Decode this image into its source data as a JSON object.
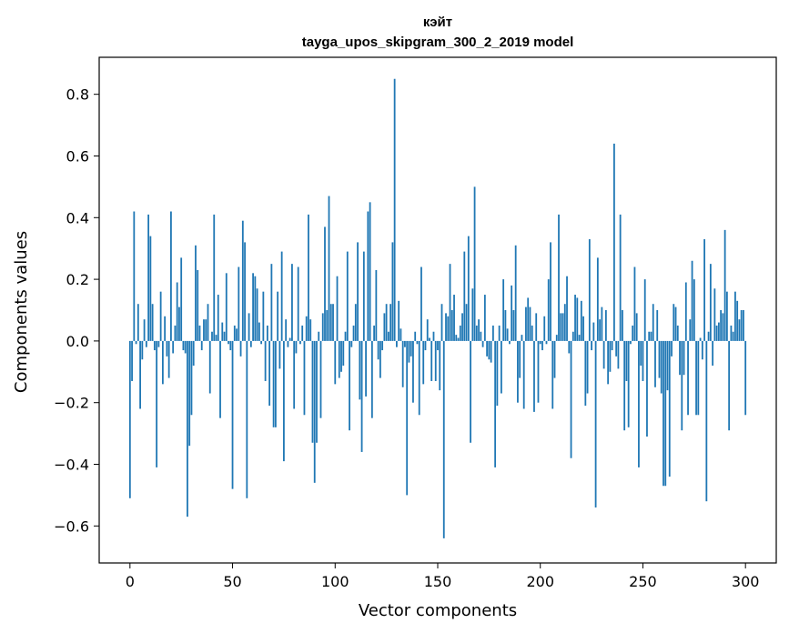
{
  "chart_data": {
    "type": "bar",
    "title": "кэйт",
    "subtitle": "tayga_upos_skipgram_300_2_2019 model",
    "xlabel": "Vector components",
    "ylabel": "Components values",
    "xlim": [
      -15,
      315
    ],
    "ylim": [
      -0.72,
      0.92
    ],
    "xticks": [
      0,
      50,
      100,
      150,
      200,
      250,
      300
    ],
    "yticks": [
      -0.6,
      -0.4,
      -0.2,
      0.0,
      0.2,
      0.4,
      0.6,
      0.8
    ],
    "ytick_labels": [
      "−0.6",
      "−0.4",
      "−0.2",
      "0.0",
      "0.2",
      "0.4",
      "0.6",
      "0.8"
    ],
    "color": "#1f77b4",
    "values": [
      -0.51,
      -0.13,
      0.42,
      -0.01,
      0.12,
      -0.22,
      -0.06,
      0.07,
      -0.02,
      0.41,
      0.34,
      0.12,
      -0.03,
      -0.41,
      -0.02,
      0.16,
      -0.14,
      0.08,
      -0.05,
      -0.12,
      0.42,
      -0.04,
      0.05,
      0.19,
      0.11,
      0.27,
      -0.03,
      -0.04,
      -0.57,
      -0.34,
      -0.24,
      -0.08,
      0.31,
      0.23,
      0.05,
      -0.03,
      0.07,
      0.07,
      0.12,
      -0.17,
      0.03,
      0.41,
      0.02,
      0.15,
      -0.25,
      0.06,
      0.03,
      0.22,
      -0.01,
      -0.03,
      -0.48,
      0.05,
      0.04,
      0.24,
      -0.05,
      0.39,
      0.32,
      -0.51,
      0.09,
      -0.02,
      0.22,
      0.21,
      0.17,
      0.06,
      -0.01,
      0.16,
      -0.13,
      0.05,
      -0.21,
      0.25,
      -0.28,
      -0.28,
      0.16,
      -0.09,
      0.29,
      -0.39,
      0.07,
      -0.02,
      0.01,
      0.25,
      -0.22,
      -0.04,
      0.24,
      -0.01,
      0.05,
      -0.24,
      0.08,
      0.41,
      0.07,
      -0.33,
      -0.46,
      -0.33,
      0.03,
      -0.25,
      0.09,
      0.37,
      0.1,
      0.47,
      0.12,
      0.12,
      -0.14,
      0.21,
      -0.12,
      -0.1,
      -0.08,
      0.03,
      0.29,
      -0.29,
      -0.02,
      0.05,
      0.12,
      0.32,
      -0.19,
      -0.36,
      0.29,
      -0.18,
      0.42,
      0.45,
      -0.25,
      0.05,
      0.23,
      -0.06,
      -0.12,
      -0.03,
      0.09,
      0.12,
      0.03,
      0.12,
      0.32,
      0.85,
      -0.02,
      0.13,
      0.04,
      -0.15,
      -0.02,
      -0.5,
      -0.07,
      -0.05,
      -0.2,
      0.03,
      -0.01,
      -0.24,
      0.24,
      -0.14,
      -0.03,
      0.07,
      0.01,
      -0.13,
      0.03,
      -0.13,
      -0.03,
      -0.16,
      0.12,
      -0.64,
      0.09,
      0.08,
      0.25,
      0.1,
      0.15,
      0.02,
      0.01,
      0.05,
      0.09,
      0.29,
      0.12,
      0.34,
      -0.33,
      0.17,
      0.5,
      0.05,
      0.07,
      0.03,
      -0.02,
      0.15,
      -0.05,
      -0.06,
      -0.07,
      0.05,
      -0.41,
      -0.21,
      0.05,
      -0.17,
      0.2,
      0.1,
      0.04,
      -0.01,
      0.18,
      0.1,
      0.31,
      -0.2,
      -0.12,
      0.02,
      -0.22,
      0.11,
      0.14,
      0.11,
      0.05,
      -0.23,
      0.09,
      -0.2,
      -0.01,
      -0.03,
      0.08,
      -0.01,
      0.2,
      0.32,
      -0.22,
      -0.12,
      0.02,
      0.41,
      0.09,
      0.09,
      0.12,
      0.21,
      -0.04,
      -0.38,
      0.03,
      0.15,
      0.14,
      0.02,
      0.13,
      0.08,
      -0.21,
      -0.17,
      0.33,
      -0.03,
      0.06,
      -0.54,
      0.27,
      0.07,
      0.11,
      -0.09,
      0.1,
      -0.14,
      -0.1,
      -0.03,
      0.64,
      -0.05,
      -0.09,
      0.41,
      0.1,
      -0.29,
      -0.13,
      -0.28,
      -0.01,
      0.05,
      0.24,
      0.09,
      -0.41,
      -0.08,
      -0.13,
      0.2,
      -0.31,
      0.03,
      0.03,
      0.12,
      -0.15,
      0.1,
      -0.12,
      -0.17,
      -0.47,
      -0.47,
      -0.16,
      -0.44,
      -0.05,
      0.12,
      0.11,
      0.05,
      -0.11,
      -0.29,
      -0.11,
      0.19,
      -0.24,
      0.07,
      0.26,
      0.2,
      -0.24,
      -0.24,
      0.01,
      -0.06,
      0.33,
      -0.52,
      0.03,
      0.25,
      -0.08,
      0.17,
      0.05,
      0.06,
      0.1,
      0.09,
      0.36,
      0.16,
      -0.29,
      0.05,
      0.03,
      0.16,
      0.13,
      0.07,
      0.1,
      0.1,
      -0.24
    ]
  }
}
